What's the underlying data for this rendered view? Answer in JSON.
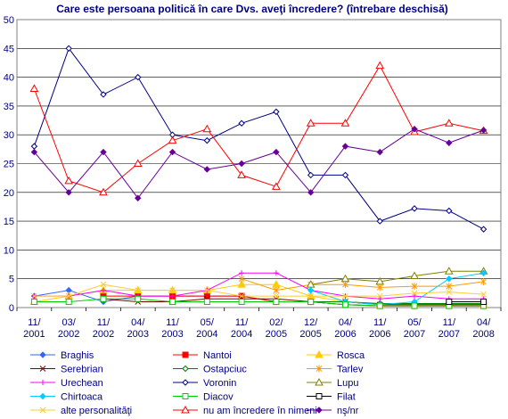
{
  "chart_data": {
    "type": "line",
    "title": "Care este persoana politică în care Dvs. aveţi încredere? (întrebare deschisă)",
    "xlabel": "",
    "ylabel": "",
    "ylim": [
      0,
      50
    ],
    "yticks": [
      0,
      5,
      10,
      15,
      20,
      25,
      30,
      35,
      40,
      45,
      50
    ],
    "grid": "horizontal",
    "legend_placement": "bottom",
    "categories": [
      [
        "11/",
        "2001"
      ],
      [
        "03/",
        "2002"
      ],
      [
        "11/",
        "2002"
      ],
      [
        "04/",
        "2003"
      ],
      [
        "11/",
        "2003"
      ],
      [
        "05/",
        "2004"
      ],
      [
        "11/",
        "2004"
      ],
      [
        "02/",
        "2005"
      ],
      [
        "12/",
        "2005"
      ],
      [
        "04/",
        "2006"
      ],
      [
        "11/",
        "2006"
      ],
      [
        "05/",
        "2007"
      ],
      [
        "11/",
        "2007"
      ],
      [
        "04/",
        "2008"
      ]
    ],
    "series": [
      {
        "name": "Braghis",
        "color": "#3366FF",
        "marker": "diamond",
        "values": [
          2,
          3,
          1,
          2,
          2,
          2,
          2,
          1,
          1,
          0.5,
          0.3,
          0.3,
          0.3,
          0.3
        ]
      },
      {
        "name": "Nantoi",
        "color": "#FF0000",
        "marker": "square",
        "values": [
          null,
          null,
          2,
          2,
          2,
          2,
          2,
          1,
          1,
          0.5,
          0.3,
          0.3,
          0.3,
          0.3
        ]
      },
      {
        "name": "Rosca",
        "color": "#FFCC00",
        "marker": "triangle",
        "values": [
          1,
          2,
          3,
          3,
          3,
          3,
          4,
          4,
          2,
          1,
          0.5,
          0.5,
          0.5,
          0.5
        ]
      },
      {
        "name": "Serebrian",
        "color": "#800000",
        "marker": "x",
        "values": [
          null,
          null,
          1.5,
          1,
          1,
          1.5,
          1.5,
          1.5,
          1,
          1,
          0.5,
          0.5,
          0.5,
          0.5
        ]
      },
      {
        "name": "Ostapciuc",
        "color": "#008000",
        "marker": "diamond-open",
        "values": [
          null,
          null,
          null,
          null,
          null,
          null,
          null,
          null,
          1,
          1,
          0.7,
          0.7,
          0.7,
          0.7
        ]
      },
      {
        "name": "Tarlev",
        "color": "#FF9900",
        "marker": "star",
        "values": [
          null,
          null,
          null,
          null,
          null,
          null,
          5,
          3,
          4,
          4,
          3.5,
          3.7,
          3.7,
          4.5
        ]
      },
      {
        "name": "Urechean",
        "color": "#FF00FF",
        "marker": "plus",
        "values": [
          2,
          2,
          3,
          2,
          2,
          3,
          6,
          6,
          3,
          2,
          1.5,
          2,
          1.5,
          1.5
        ]
      },
      {
        "name": "Voronin",
        "color": "#000080",
        "marker": "diamond-open",
        "values": [
          28,
          45,
          37,
          40,
          30,
          29,
          32,
          34,
          23,
          23,
          15,
          17.2,
          16.8,
          13.6
        ]
      },
      {
        "name": "Lupu",
        "color": "#808000",
        "marker": "triangle-open",
        "values": [
          null,
          null,
          null,
          null,
          null,
          null,
          null,
          null,
          4,
          5,
          4.5,
          5.5,
          6.3,
          6.3
        ]
      },
      {
        "name": "Chirtoaca",
        "color": "#00CCFF",
        "marker": "diamond",
        "values": [
          null,
          null,
          null,
          null,
          null,
          null,
          null,
          null,
          3,
          1,
          0.5,
          1,
          5,
          6
        ]
      },
      {
        "name": "Diacov",
        "color": "#00CC00",
        "marker": "square-open",
        "values": [
          1,
          1,
          1.5,
          1.5,
          1,
          1,
          1,
          1,
          1,
          0.5,
          0.3,
          0.3,
          0.3,
          0.3
        ]
      },
      {
        "name": "Filat",
        "color": "#000000",
        "marker": "square-open",
        "values": [
          null,
          null,
          null,
          null,
          null,
          null,
          null,
          null,
          null,
          null,
          null,
          null,
          1,
          1
        ]
      },
      {
        "name": "alte personalităţi",
        "color": "#FFCC33",
        "marker": "x",
        "values": [
          2,
          2,
          4,
          3,
          3,
          3,
          2,
          2,
          2,
          2,
          2,
          2.5,
          2.7,
          2.3
        ]
      },
      {
        "name": "nu am încredere în nimeni",
        "color": "#FF0000",
        "marker": "triangle-open",
        "values": [
          38,
          22,
          20,
          25,
          29,
          31,
          23,
          21,
          32,
          32,
          42,
          30.5,
          32,
          30.7
        ]
      },
      {
        "name": "nş/nr",
        "color": "#660099",
        "marker": "diamond",
        "values": [
          27,
          20,
          27,
          19,
          27,
          24,
          25,
          27,
          20,
          28,
          27,
          31,
          28.6,
          30.8
        ]
      }
    ]
  }
}
